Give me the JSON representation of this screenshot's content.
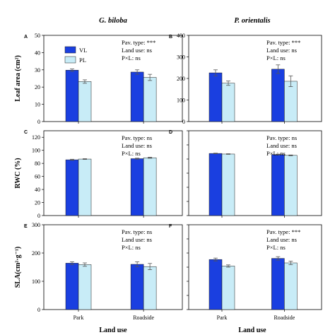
{
  "column_titles": [
    "G. biloba",
    "P. orientalis"
  ],
  "x_axis_label": "Land use",
  "legend": [
    {
      "label": "VL",
      "color": "#1a3fe0"
    },
    {
      "label": "PL",
      "color": "#c8ecf7"
    }
  ],
  "chart_data": [
    {
      "panel": "A",
      "type": "bar",
      "title": "G. biloba",
      "ylabel": "Leaf area (cm²)",
      "ylim": [
        0,
        50
      ],
      "yticks": [
        0,
        10,
        20,
        30,
        40,
        50
      ],
      "categories": [
        "Park",
        "Roadside"
      ],
      "series": [
        {
          "name": "VL",
          "values": [
            29.8,
            28.7
          ],
          "errors": [
            0.7,
            1.3
          ]
        },
        {
          "name": "PL",
          "values": [
            23.2,
            25.6
          ],
          "errors": [
            1.0,
            1.8
          ]
        }
      ],
      "annotations": [
        "Pav. type: ***",
        "Land use: ns",
        "P×L: ns"
      ]
    },
    {
      "panel": "B",
      "type": "bar",
      "title": "P. orientalis",
      "ylabel": "",
      "ylim": [
        0,
        400
      ],
      "yticks": [
        0,
        100,
        200,
        300,
        400
      ],
      "categories": [
        "Park",
        "Roadside"
      ],
      "series": [
        {
          "name": "VL",
          "values": [
            226,
            243
          ],
          "errors": [
            14,
            20
          ]
        },
        {
          "name": "PL",
          "values": [
            178,
            187
          ],
          "errors": [
            10,
            25
          ]
        }
      ],
      "annotations": [
        "Pav. type: ***",
        "Land use: ns",
        "P×L: ns"
      ]
    },
    {
      "panel": "C",
      "type": "bar",
      "title": "",
      "ylabel": "RWC (%)",
      "ylim": [
        0,
        130
      ],
      "yticks": [
        0,
        20,
        40,
        60,
        80,
        100,
        120
      ],
      "categories": [
        "Park",
        "Roadside"
      ],
      "series": [
        {
          "name": "VL",
          "values": [
            85.5,
            87.2
          ],
          "errors": [
            0.8,
            0.8
          ]
        },
        {
          "name": "PL",
          "values": [
            86.6,
            88.6
          ],
          "errors": [
            0.6,
            0.7
          ]
        }
      ],
      "annotations": [
        "Pav. type: ns",
        "Land use: ns",
        "P×L: ns"
      ]
    },
    {
      "panel": "D",
      "type": "bar",
      "title": "",
      "ylabel": "",
      "ylim": [
        0,
        130
      ],
      "yticks": [],
      "categories": [
        "Park",
        "Roadside"
      ],
      "series": [
        {
          "name": "VL",
          "values": [
            95.2,
            93.5
          ],
          "errors": [
            0.5,
            0.6
          ]
        },
        {
          "name": "PL",
          "values": [
            94.3,
            92.3
          ],
          "errors": [
            0.5,
            0.6
          ]
        }
      ],
      "annotations": [
        "Pav. type: ns",
        "Land use: ns",
        "P×L: ns"
      ]
    },
    {
      "panel": "E",
      "type": "bar",
      "title": "",
      "ylabel": "SLA(cm²·g⁻¹)",
      "ylim": [
        0,
        300
      ],
      "yticks": [
        0,
        100,
        200,
        300
      ],
      "categories": [
        "Park",
        "Roadside"
      ],
      "series": [
        {
          "name": "VL",
          "values": [
            164,
            160
          ],
          "errors": [
            5,
            9
          ]
        },
        {
          "name": "PL",
          "values": [
            159,
            152
          ],
          "errors": [
            6,
            11
          ]
        }
      ],
      "annotations": [
        "Pav. type: ns",
        "Land use: ns",
        "P×L: ns"
      ]
    },
    {
      "panel": "F",
      "type": "bar",
      "title": "",
      "ylabel": "",
      "ylim": [
        0,
        300
      ],
      "yticks": [],
      "categories": [
        "Park",
        "Roadside"
      ],
      "series": [
        {
          "name": "VL",
          "values": [
            177,
            181
          ],
          "errors": [
            5,
            6
          ]
        },
        {
          "name": "PL",
          "values": [
            154,
            165
          ],
          "errors": [
            4,
            6
          ]
        }
      ],
      "annotations": [
        "Pav. type: ***",
        "Land use: ns",
        "P×L: ns"
      ]
    }
  ]
}
